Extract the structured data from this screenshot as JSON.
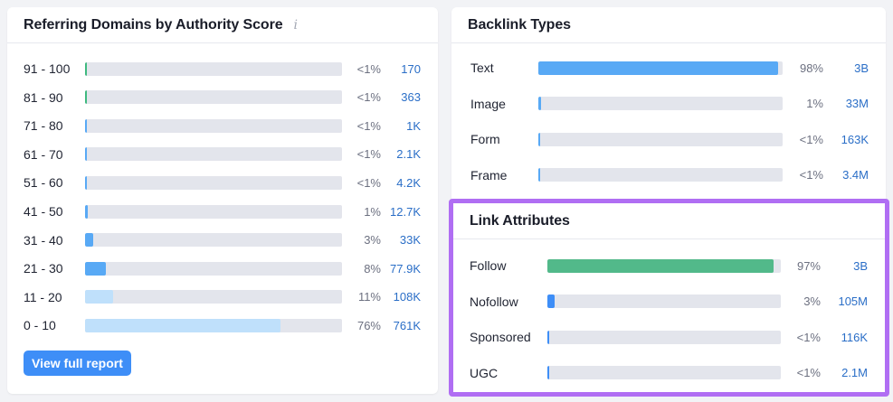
{
  "referring_domains": {
    "title": "Referring Domains by Authority Score",
    "info_icon": "i",
    "colors": {
      "green": "#3fb97f",
      "blue": "#58a9f5",
      "light_blue": "#bfe0fb",
      "track": "#e3e5ec"
    },
    "rows": [
      {
        "label": "91 - 100",
        "pct": "<1%",
        "count": "170",
        "share": 0.004,
        "color": "#3fb97f"
      },
      {
        "label": "81 - 90",
        "pct": "<1%",
        "count": "363",
        "share": 0.004,
        "color": "#3fb97f"
      },
      {
        "label": "71 - 80",
        "pct": "<1%",
        "count": "1K",
        "share": 0.004,
        "color": "#58a9f5"
      },
      {
        "label": "61 - 70",
        "pct": "<1%",
        "count": "2.1K",
        "share": 0.004,
        "color": "#58a9f5"
      },
      {
        "label": "51 - 60",
        "pct": "<1%",
        "count": "4.2K",
        "share": 0.004,
        "color": "#58a9f5"
      },
      {
        "label": "41 - 50",
        "pct": "1%",
        "count": "12.7K",
        "share": 0.01,
        "color": "#58a9f5"
      },
      {
        "label": "31 - 40",
        "pct": "3%",
        "count": "33K",
        "share": 0.03,
        "color": "#58a9f5"
      },
      {
        "label": "21 - 30",
        "pct": "8%",
        "count": "77.9K",
        "share": 0.08,
        "color": "#58a9f5"
      },
      {
        "label": "11 - 20",
        "pct": "11%",
        "count": "108K",
        "share": 0.11,
        "color": "#bfe0fb"
      },
      {
        "label": "0 - 10",
        "pct": "76%",
        "count": "761K",
        "share": 0.76,
        "color": "#bfe0fb"
      }
    ],
    "view_full_report_label": "View full report"
  },
  "backlink_types": {
    "title": "Backlink Types",
    "rows": [
      {
        "label": "Text",
        "pct": "98%",
        "count": "3B",
        "share": 0.98,
        "color": "#58a9f5"
      },
      {
        "label": "Image",
        "pct": "1%",
        "count": "33M",
        "share": 0.01,
        "color": "#58a9f5"
      },
      {
        "label": "Form",
        "pct": "<1%",
        "count": "163K",
        "share": 0.004,
        "color": "#58a9f5"
      },
      {
        "label": "Frame",
        "pct": "<1%",
        "count": "3.4M",
        "share": 0.004,
        "color": "#58a9f5"
      }
    ]
  },
  "link_attributes": {
    "title": "Link Attributes",
    "highlight_color": "#b06ef3",
    "rows": [
      {
        "label": "Follow",
        "pct": "97%",
        "count": "3B",
        "share": 0.97,
        "color": "#52b98a"
      },
      {
        "label": "Nofollow",
        "pct": "3%",
        "count": "105M",
        "share": 0.03,
        "color": "#3e8ef7"
      },
      {
        "label": "Sponsored",
        "pct": "<1%",
        "count": "116K",
        "share": 0.004,
        "color": "#3e8ef7"
      },
      {
        "label": "UGC",
        "pct": "<1%",
        "count": "2.1M",
        "share": 0.004,
        "color": "#3e8ef7"
      }
    ]
  }
}
